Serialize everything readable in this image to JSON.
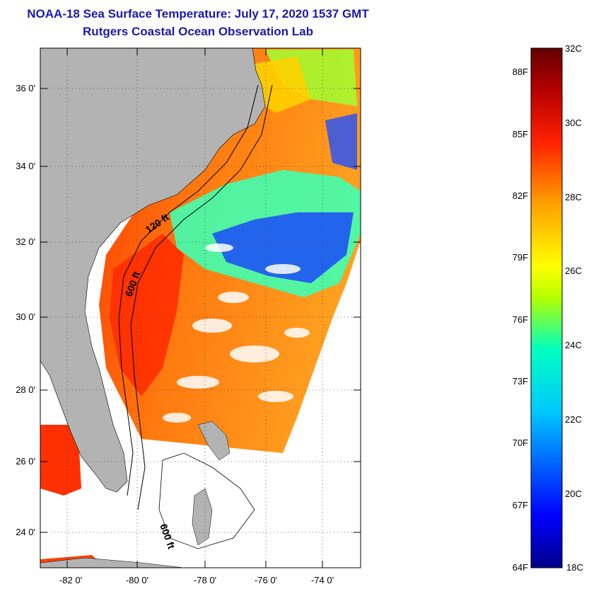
{
  "header": {
    "title": "NOAA-18 Sea Surface Temperature:  July 17, 2020 1537 GMT",
    "subtitle": "Rutgers Coastal Ocean Observation Lab"
  },
  "map": {
    "lat_labels": [
      "36 0'",
      "34 0'",
      "32 0'",
      "30 0'",
      "28 0'",
      "26 0'",
      "24 0'"
    ],
    "lon_labels": [
      "-82 0'",
      "-80 0'",
      "-78 0'",
      "-76 0'",
      "-74 0'"
    ],
    "contour_labels": [
      "120 ft",
      "600 ft",
      "600 ft"
    ]
  },
  "colorbar": {
    "celsius_labels": [
      "32C",
      "30C",
      "28C",
      "26C",
      "24C",
      "22C",
      "20C",
      "18C"
    ],
    "fahrenheit_labels": [
      "88F",
      "85F",
      "82F",
      "79F",
      "76F",
      "73F",
      "70F",
      "67F",
      "64F"
    ],
    "colors": [
      "#00008b",
      "#0000ff",
      "#00c8ff",
      "#00ffc0",
      "#b4ff00",
      "#ffff00",
      "#ffa000",
      "#ff2000",
      "#b40000",
      "#640000"
    ]
  }
}
